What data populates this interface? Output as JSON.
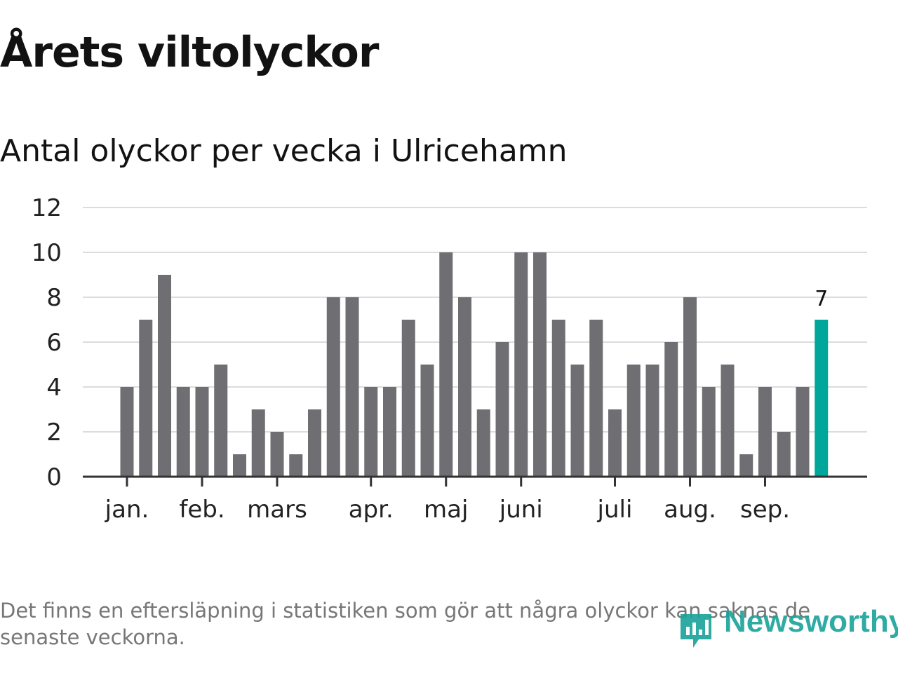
{
  "title": "Årets viltolyckor",
  "subtitle": "Antal olyckor per vecka i Ulricehamn",
  "footnote": "Det finns en eftersläpning i statistiken som gör att några olyckor kan saknas de senaste veckorna.",
  "brand": {
    "name": "Newsworthy",
    "icon": "newsworthy-logo-icon",
    "color": "#1aa39a"
  },
  "colors": {
    "bar": "#6f6e73",
    "highlight": "#00a69a",
    "grid": "#dcdcdc"
  },
  "chart_data": {
    "type": "bar",
    "title": "Årets viltolyckor",
    "subtitle": "Antal olyckor per vecka i Ulricehamn",
    "xlabel": "",
    "ylabel": "",
    "ylim": [
      0,
      12
    ],
    "yticks": [
      0,
      2,
      4,
      6,
      8,
      10,
      12
    ],
    "grid": true,
    "weeks": [
      1,
      2,
      3,
      4,
      5,
      6,
      7,
      8,
      9,
      10,
      11,
      12,
      13,
      14,
      15,
      16,
      17,
      18,
      19,
      20,
      21,
      22,
      23,
      24,
      25,
      26,
      27,
      28,
      29,
      30,
      31,
      32,
      33,
      34,
      35,
      36,
      37,
      38
    ],
    "values": [
      4,
      7,
      9,
      4,
      4,
      5,
      1,
      3,
      2,
      1,
      3,
      8,
      8,
      4,
      4,
      7,
      5,
      10,
      8,
      3,
      6,
      10,
      10,
      7,
      5,
      7,
      3,
      5,
      5,
      6,
      8,
      4,
      5,
      1,
      4,
      2,
      4,
      7
    ],
    "month_ticks": [
      {
        "label": "jan.",
        "week": 1
      },
      {
        "label": "feb.",
        "week": 5
      },
      {
        "label": "mars",
        "week": 9
      },
      {
        "label": "apr.",
        "week": 14
      },
      {
        "label": "maj",
        "week": 18
      },
      {
        "label": "juni",
        "week": 22
      },
      {
        "label": "juli",
        "week": 27
      },
      {
        "label": "aug.",
        "week": 31
      },
      {
        "label": "sep.",
        "week": 35
      }
    ],
    "highlight": {
      "week": 38,
      "value": 7,
      "label": "7"
    }
  }
}
